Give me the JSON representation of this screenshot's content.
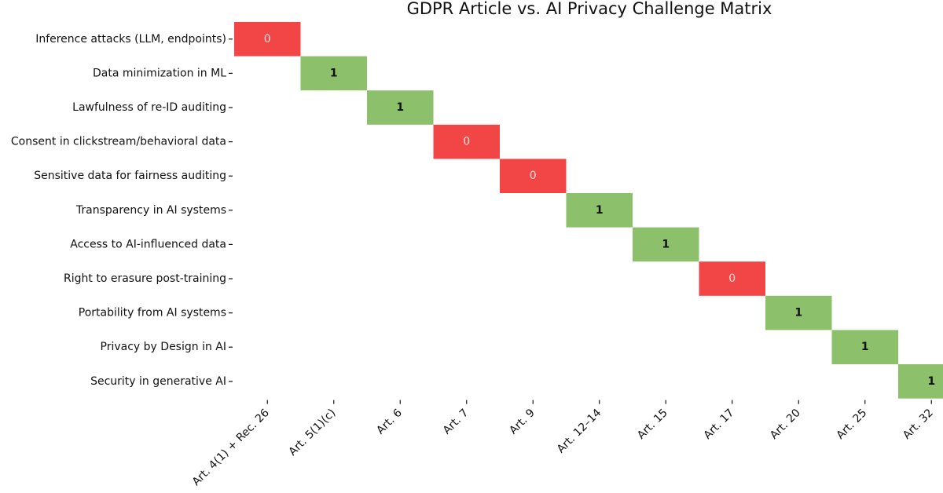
{
  "chart_data": {
    "type": "heatmap",
    "title": "GDPR Article vs. AI Privacy Challenge Matrix",
    "rows": [
      "Inference attacks (LLM, endpoints)",
      "Data minimization in ML",
      "Lawfulness of re-ID auditing",
      "Consent in clickstream/behavioral data",
      "Sensitive data for fairness auditing",
      "Transparency in AI systems",
      "Access to AI-influenced data",
      "Right to erasure post-training",
      "Portability from AI systems",
      "Privacy by Design in AI",
      "Security in generative AI"
    ],
    "columns": [
      "Art. 4(1) + Rec. 26",
      "Art. 5(1)(c)",
      "Art. 6",
      "Art. 7",
      "Art. 9",
      "Art. 12–14",
      "Art. 15",
      "Art. 17",
      "Art. 20",
      "Art. 25",
      "Art. 32"
    ],
    "values": [
      [
        0,
        null,
        null,
        null,
        null,
        null,
        null,
        null,
        null,
        null,
        null
      ],
      [
        null,
        1,
        null,
        null,
        null,
        null,
        null,
        null,
        null,
        null,
        null
      ],
      [
        null,
        null,
        1,
        null,
        null,
        null,
        null,
        null,
        null,
        null,
        null
      ],
      [
        null,
        null,
        null,
        0,
        null,
        null,
        null,
        null,
        null,
        null,
        null
      ],
      [
        null,
        null,
        null,
        null,
        0,
        null,
        null,
        null,
        null,
        null,
        null
      ],
      [
        null,
        null,
        null,
        null,
        null,
        1,
        null,
        null,
        null,
        null,
        null
      ],
      [
        null,
        null,
        null,
        null,
        null,
        null,
        1,
        null,
        null,
        null,
        null
      ],
      [
        null,
        null,
        null,
        null,
        null,
        null,
        null,
        0,
        null,
        null,
        null
      ],
      [
        null,
        null,
        null,
        null,
        null,
        null,
        null,
        null,
        1,
        null,
        null
      ],
      [
        null,
        null,
        null,
        null,
        null,
        null,
        null,
        null,
        null,
        1,
        null
      ],
      [
        null,
        null,
        null,
        null,
        null,
        null,
        null,
        null,
        null,
        null,
        1
      ]
    ],
    "colors": [
      "#f24646",
      "#8dc06b"
    ],
    "text_colors": [
      "#f6dede",
      "#111111"
    ]
  }
}
